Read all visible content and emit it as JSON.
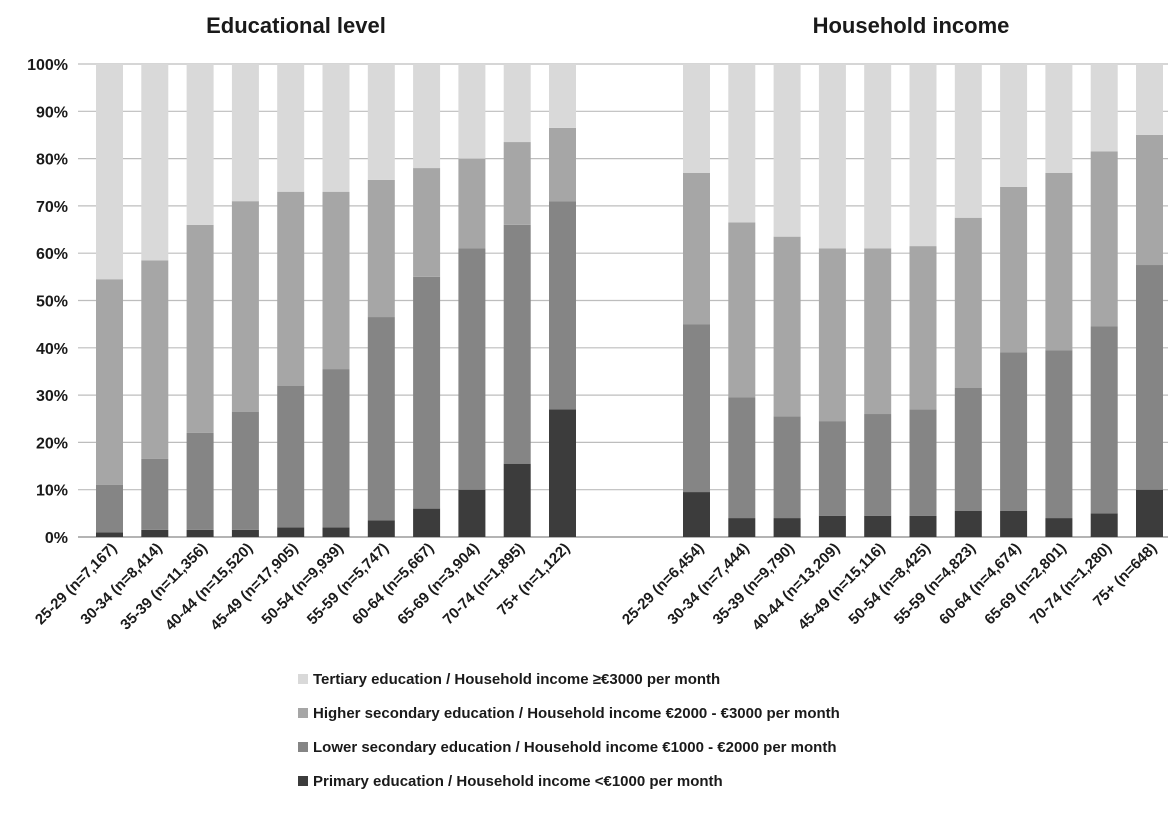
{
  "chart_data": {
    "type": "bar",
    "stacked": true,
    "percent": true,
    "ylim": [
      0,
      100
    ],
    "yticks": [
      "0%",
      "10%",
      "20%",
      "30%",
      "40%",
      "50%",
      "60%",
      "70%",
      "80%",
      "90%",
      "100%"
    ],
    "grid": true,
    "legend_placement": "bottom",
    "series_names": [
      "Primary education / Household income <€1000 per month",
      "Lower secondary education / Household income €1000 - €2000 per month",
      "Higher secondary education / Household income €2000 - €3000 per month",
      "Tertiary education / Household income ≥€3000 per month"
    ],
    "series_colors": [
      "#3c3c3c",
      "#858585",
      "#a6a6a6",
      "#d9d9d9"
    ],
    "panels": [
      {
        "title": "Educational level",
        "categories": [
          "25-29 (n=7,167)",
          "30-34 (n=8,414)",
          "35-39 (n=11,356)",
          "40-44 (n=15,520)",
          "45-49 (n=17,905)",
          "50-54 (n=9,939)",
          "55-59 (n=5,747)",
          "60-64 (n=5,667)",
          "65-69 (n=3,904)",
          "70-74 (n=1,895)",
          "75+ (n=1,122)"
        ],
        "series": [
          {
            "values": [
              1,
              1.5,
              1.5,
              1.5,
              2,
              2,
              3.5,
              6,
              10,
              15.5,
              27
            ]
          },
          {
            "values": [
              10,
              15,
              20.5,
              25,
              30,
              33.5,
              43,
              49,
              51,
              50.5,
              44
            ]
          },
          {
            "values": [
              43.5,
              42,
              44,
              44.5,
              41,
              37.5,
              29,
              23,
              19,
              17.5,
              15.5
            ]
          },
          {
            "values": [
              45.5,
              41.5,
              34,
              29,
              27,
              27,
              24.5,
              22,
              20,
              16.5,
              13.5
            ]
          }
        ]
      },
      {
        "title": "Household income",
        "categories": [
          "25-29 (n=6,454)",
          "30-34 (n=7,444)",
          "35-39 (n=9,790)",
          "40-44 (n=13,209)",
          "45-49 (n=15,116)",
          "50-54 (n=8,425)",
          "55-59 (n=4,823)",
          "60-64 (n=4,674)",
          "65-69 (n=2,801)",
          "70-74 (n=1,280)",
          "75+ (n=648)"
        ],
        "series": [
          {
            "values": [
              9.5,
              4,
              4,
              4.5,
              4.5,
              4.5,
              5.5,
              5.5,
              4,
              5,
              10
            ]
          },
          {
            "values": [
              35.5,
              25.5,
              21.5,
              20,
              21.5,
              22.5,
              26,
              33.5,
              35.5,
              39.5,
              47.5
            ]
          },
          {
            "values": [
              32,
              37,
              38,
              36.5,
              35,
              34.5,
              36,
              35,
              37.5,
              37,
              27.5
            ]
          },
          {
            "values": [
              23,
              33.5,
              36.5,
              39,
              39,
              38.5,
              32.5,
              26,
              23,
              18.5,
              15
            ]
          }
        ]
      }
    ]
  }
}
